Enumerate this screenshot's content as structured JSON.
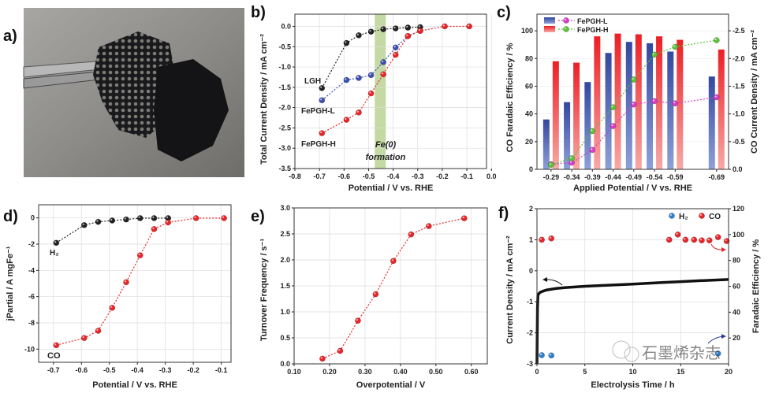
{
  "panel_labels": [
    "a)",
    "b)",
    "c)",
    "d)",
    "e)",
    "f)"
  ],
  "watermark": "石墨烯杂志",
  "chart_data": [
    {
      "panel": "b",
      "type": "line",
      "xlabel": "Potential / V vs. RHE",
      "ylabel": "Total Current Density / mA cm⁻²",
      "xlim": [
        -0.8,
        -0.02
      ],
      "ylim": [
        -3.5,
        0.3
      ],
      "grid": true,
      "xticks": [
        "-0.8",
        "-0.7",
        "-0.6",
        "-0.5",
        "-0.4",
        "-0.3",
        "-0.2",
        "-0.1",
        "0.0"
      ],
      "yticks": [
        "0.0",
        "-0.5",
        "-1.0",
        "-1.5",
        "-2.0",
        "-2.5",
        "-3.0",
        "-3.5"
      ],
      "shaded_region": {
        "x": [
          -0.475,
          -0.43
        ],
        "color": "#c5d9a4",
        "label": [
          "Fe(0)",
          "formation"
        ],
        "label_color": "#2bb24c"
      },
      "series": [
        {
          "name": "LGH",
          "color": "#222222",
          "x": [
            -0.69,
            -0.59,
            -0.54,
            -0.49,
            -0.44,
            -0.39,
            -0.34,
            -0.29
          ],
          "y": [
            -1.52,
            -0.41,
            -0.22,
            -0.13,
            -0.07,
            -0.05,
            -0.03,
            -0.02
          ]
        },
        {
          "name": "FePGH-L",
          "color": "#3b4fb0",
          "x": [
            -0.69,
            -0.59,
            -0.54,
            -0.49,
            -0.44,
            -0.39,
            -0.34,
            -0.29
          ],
          "y": [
            -1.82,
            -1.32,
            -1.27,
            -1.2,
            -0.88,
            -0.52,
            -0.24,
            -0.11
          ]
        },
        {
          "name": "FePGH-H",
          "color": "#e8262a",
          "x": [
            -0.69,
            -0.59,
            -0.54,
            -0.49,
            -0.44,
            -0.39,
            -0.34,
            -0.29,
            -0.19,
            -0.09
          ],
          "y": [
            -2.63,
            -2.3,
            -2.12,
            -1.65,
            -1.18,
            -0.7,
            -0.24,
            -0.11,
            0.0,
            0.0
          ]
        }
      ]
    },
    {
      "panel": "c",
      "type": "bar",
      "xlabel": "Applied Potential / V vs. RHE",
      "ylabel": "CO Faradaic Efficiency / %",
      "y2label": "CO Current Density / mA cm⁻²",
      "xlim": [
        -0.256,
        -0.719
      ],
      "ylim": [
        0,
        112
      ],
      "y2lim": [
        0,
        -2.8
      ],
      "grid": false,
      "categories": [
        "-0.29",
        "-0.34",
        "-0.39",
        "-0.44",
        "-0.49",
        "-0.54",
        "-0.59",
        "-0.69"
      ],
      "yticks": [
        "0",
        "20",
        "40",
        "60",
        "80",
        "100"
      ],
      "y2ticks": [
        "0.0",
        "-0.5",
        "-1.0",
        "-1.5",
        "-2.0",
        "-2.5"
      ],
      "legend": "top-left",
      "bar_series": [
        {
          "name": "FePGH-L",
          "color": "#3b4fb0",
          "values": [
            36,
            48.5,
            63,
            84,
            92,
            91,
            85,
            67
          ]
        },
        {
          "name": "FePGH-H",
          "color": "#ee2a2a",
          "values": [
            78,
            77,
            96,
            98,
            97.5,
            96,
            93.5,
            86.5
          ]
        }
      ],
      "line_series": [
        {
          "name": "FePGH-L",
          "color": "#d43fc4",
          "values": [
            -0.09,
            -0.12,
            -0.35,
            -0.78,
            -1.17,
            -1.23,
            -1.19,
            -1.3
          ]
        },
        {
          "name": "FePGH-H",
          "color": "#5cc23a",
          "values": [
            -0.08,
            -0.2,
            -0.69,
            -1.12,
            -1.62,
            -2.07,
            -2.21,
            -2.33
          ]
        }
      ]
    },
    {
      "panel": "d",
      "type": "line",
      "xlabel": "Potential / V vs. RHE",
      "ylabel": "jPartial / A mgFe⁻¹",
      "xlim": [
        -0.753,
        -0.065
      ],
      "ylim": [
        -11,
        1
      ],
      "grid": true,
      "xticks": [
        "-0.7",
        "-0.6",
        "-0.5",
        "-0.4",
        "-0.3",
        "-0.2",
        "-0.1"
      ],
      "yticks": [
        "0",
        "-2",
        "-4",
        "-6",
        "-8",
        "-10"
      ],
      "series": [
        {
          "name": "H₂",
          "color": "#222222",
          "x": [
            -0.69,
            -0.59,
            -0.54,
            -0.49,
            -0.44,
            -0.39,
            -0.34,
            -0.29
          ],
          "y": [
            -1.9,
            -0.55,
            -0.3,
            -0.2,
            -0.12,
            -0.02,
            -0.02,
            -0.02
          ]
        },
        {
          "name": "CO",
          "color": "#e8262a",
          "x": [
            -0.69,
            -0.59,
            -0.54,
            -0.49,
            -0.44,
            -0.39,
            -0.34,
            -0.29,
            -0.19,
            -0.09
          ],
          "y": [
            -9.7,
            -9.15,
            -8.6,
            -6.85,
            -4.9,
            -2.85,
            -0.85,
            -0.35,
            -0.02,
            -0.02
          ]
        }
      ]
    },
    {
      "panel": "e",
      "type": "line",
      "xlabel": "Overpotential / V",
      "ylabel": "Turnover Frequency / s⁻¹",
      "xlim": [
        0.1,
        0.645
      ],
      "ylim": [
        0,
        3.0
      ],
      "grid": true,
      "xticks": [
        "0.10",
        "0.20",
        "0.30",
        "0.40",
        "0.50",
        "0.60"
      ],
      "yticks": [
        "0.0",
        "0.5",
        "1.0",
        "1.5",
        "2.0",
        "2.5",
        "3.0"
      ],
      "series": [
        {
          "color": "#e8262a",
          "x": [
            0.18,
            0.23,
            0.28,
            0.33,
            0.38,
            0.43,
            0.48,
            0.58
          ],
          "y": [
            0.1,
            0.25,
            0.83,
            1.34,
            1.98,
            2.49,
            2.65,
            2.8
          ]
        }
      ]
    },
    {
      "panel": "f",
      "type": "line",
      "xlabel": "Electrolysis Time / h",
      "ylabel": "Current Density / mA cm⁻²",
      "y2label": "Faradaic Efficiency / %",
      "xlim": [
        0,
        20
      ],
      "ylim": [
        -3,
        2
      ],
      "y2lim": [
        0,
        120
      ],
      "grid": true,
      "xticks": [
        "0",
        "5",
        "10",
        "15",
        "20"
      ],
      "yticks": [
        "2",
        "1",
        "0",
        "-1",
        "-2",
        "-3"
      ],
      "y2ticks": [
        "20",
        "40",
        "60",
        "80",
        "100",
        "120"
      ],
      "legend": "top-right",
      "current_series": {
        "color": "#111111",
        "x": [
          0,
          0.05,
          0.1,
          0.3,
          0.6,
          1,
          2,
          3,
          5,
          7,
          10,
          13,
          15,
          17,
          20
        ],
        "y": [
          -3,
          -1.2,
          -0.78,
          -0.7,
          -0.66,
          -0.62,
          -0.57,
          -0.54,
          -0.5,
          -0.47,
          -0.43,
          -0.38,
          -0.35,
          -0.32,
          -0.28
        ]
      },
      "fe_series": [
        {
          "name": "H₂",
          "color": "#2f7fd0",
          "x": [
            0.5,
            1.5,
            18.9
          ],
          "y": [
            6.7,
            6.5,
            8
          ]
        },
        {
          "name": "CO",
          "color": "#e8262a",
          "x": [
            0.5,
            1.5,
            13.8,
            14.7,
            15.5,
            16.4,
            17.2,
            18.0,
            18.9,
            19.8
          ],
          "y": [
            96,
            97,
            96,
            100,
            96,
            96,
            95.5,
            95.5,
            98,
            95
          ]
        }
      ]
    }
  ]
}
